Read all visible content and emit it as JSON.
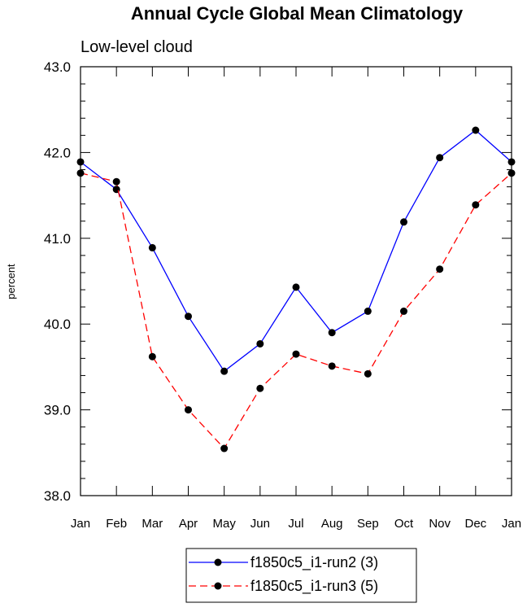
{
  "chart_data": {
    "type": "line",
    "title": "Annual Cycle Global Mean Climatology",
    "subtitle": "Low-level cloud",
    "xlabel": "",
    "ylabel": "percent",
    "categories": [
      "Jan",
      "Feb",
      "Mar",
      "Apr",
      "May",
      "Jun",
      "Jul",
      "Aug",
      "Sep",
      "Oct",
      "Nov",
      "Dec",
      "Jan"
    ],
    "ylim": [
      38.0,
      43.0
    ],
    "yticks": [
      "38.0",
      "39.0",
      "40.0",
      "41.0",
      "42.0",
      "43.0"
    ],
    "series": [
      {
        "name": "f1850c5_i1-run2 (3)",
        "color": "#0000ff",
        "dash": "solid",
        "values": [
          41.89,
          41.57,
          40.89,
          40.09,
          39.45,
          39.77,
          40.43,
          39.9,
          40.15,
          41.19,
          41.94,
          42.26,
          41.89
        ]
      },
      {
        "name": "f1850c5_i1-run3 (5)",
        "color": "#ff0000",
        "dash": "dashed",
        "values": [
          41.76,
          41.66,
          39.62,
          39.0,
          38.55,
          39.25,
          39.65,
          39.51,
          39.42,
          40.15,
          40.64,
          41.39,
          41.76
        ]
      }
    ],
    "legend_position": "bottom"
  }
}
